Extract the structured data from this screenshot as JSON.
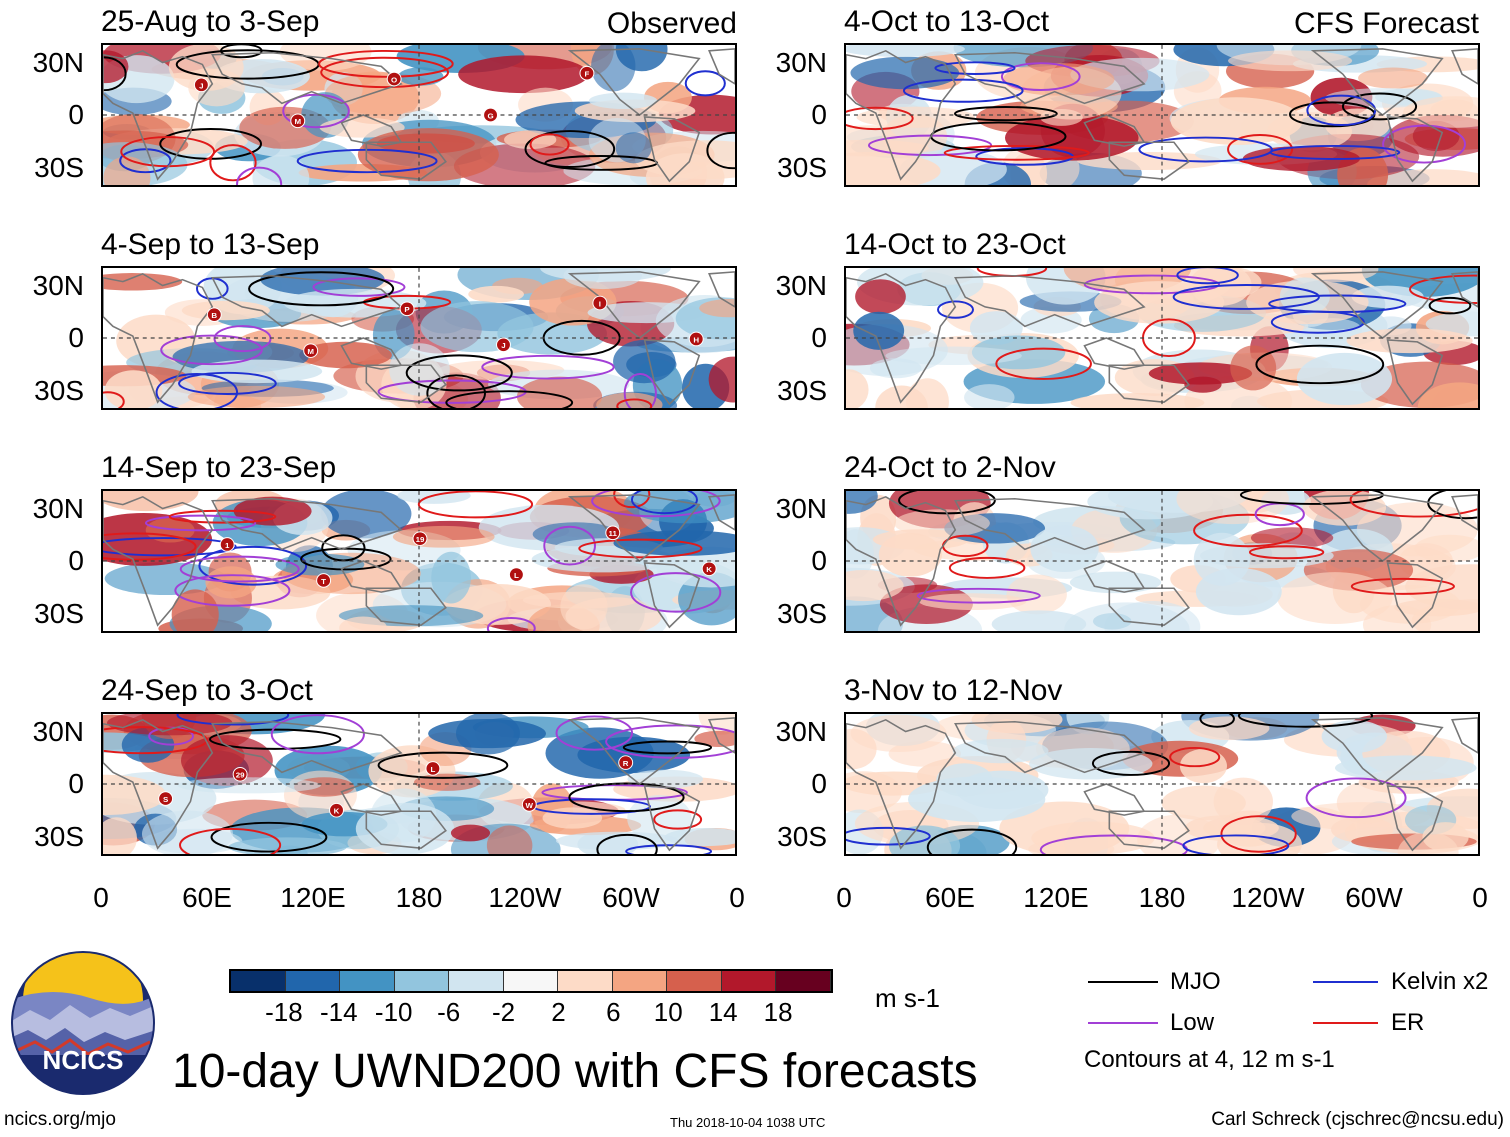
{
  "observed_label": "Observed",
  "forecast_label": "CFS Forecast",
  "panels_left": [
    {
      "title": "25-Aug to 3-Sep",
      "storms": [
        "J",
        "M",
        "O",
        "G",
        "F"
      ]
    },
    {
      "title": "4-Sep to 13-Sep",
      "storms": [
        "B",
        "M",
        "P",
        "J",
        "I",
        "H"
      ]
    },
    {
      "title": "14-Sep to 23-Sep",
      "storms": [
        "1",
        "T",
        "19",
        "L",
        "11",
        "K"
      ]
    },
    {
      "title": "24-Sep to 3-Oct",
      "storms": [
        "29",
        "K",
        "L",
        "W",
        "R",
        "S"
      ]
    }
  ],
  "panels_right": [
    {
      "title": "4-Oct to 13-Oct"
    },
    {
      "title": "14-Oct to 23-Oct"
    },
    {
      "title": "24-Oct to 2-Nov"
    },
    {
      "title": "3-Nov to 12-Nov"
    }
  ],
  "lat_labels": [
    "30N",
    "0",
    "30S"
  ],
  "lon_labels": [
    "0",
    "60E",
    "120E",
    "180",
    "120W",
    "60W",
    "0"
  ],
  "colorbar": {
    "labels": [
      "-18",
      "-14",
      "-10",
      "-6",
      "-2",
      "2",
      "6",
      "10",
      "14",
      "18"
    ],
    "colors": [
      "#08306b",
      "#2166ac",
      "#4393c3",
      "#92c5de",
      "#d1e5f0",
      "#f7f7f7",
      "#fddbc7",
      "#f4a582",
      "#d6604d",
      "#b2182b",
      "#67001f"
    ],
    "units": "m s-1"
  },
  "legend": {
    "items": [
      {
        "label": "MJO",
        "color": "#000000"
      },
      {
        "label": "Kelvin x2",
        "color": "#1f2fd0"
      },
      {
        "label": "Low",
        "color": "#a23fd6"
      },
      {
        "label": "ER",
        "color": "#e01a1a"
      }
    ],
    "note": "Contours at 4, 12 m s-1"
  },
  "logo_text": "NCICS",
  "main_title": "10-day UWND200 with CFS forecasts",
  "footer": {
    "left": "ncics.org/mjo",
    "center": "Thu 2018-10-04 1038 UTC",
    "right": "Carl Schreck (cjschrec@ncsu.edu)"
  }
}
